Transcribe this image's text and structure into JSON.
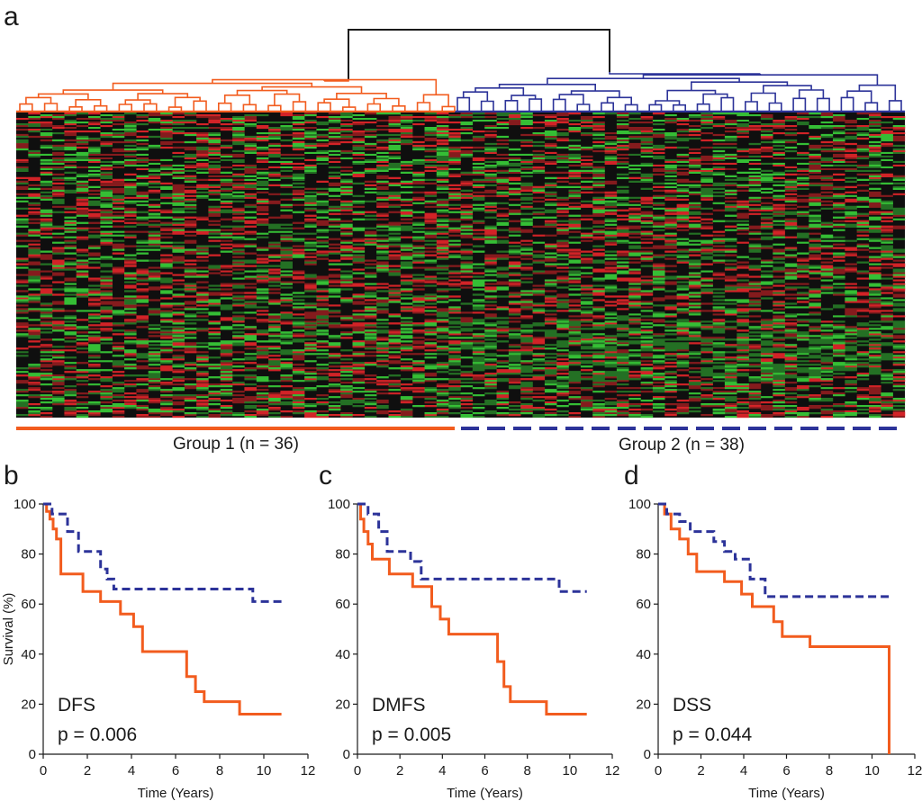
{
  "colors": {
    "group1": "#f25c1e",
    "group2": "#2c3399",
    "heat_up": "#e8262a",
    "heat_down": "#3ad13a",
    "heat_mid": "#0f0f0f",
    "root": "#1a1a1a"
  },
  "panel_a": {
    "letter": "a",
    "group1_label": "Group 1 (n = 36)",
    "group2_label": "Group 2 (n = 38)",
    "group1_n": 36,
    "group2_n": 38
  },
  "chart_data": [
    {
      "type": "line",
      "panel": "b",
      "title": "DFS",
      "pvalue": "p = 0.006",
      "xlabel": "Time (Years)",
      "ylabel": "Survival (%)",
      "xlim": [
        0,
        12
      ],
      "ylim": [
        0,
        100
      ],
      "xticks": [
        "0",
        "2",
        "4",
        "6",
        "8",
        "10",
        "12"
      ],
      "yticks": [
        "0",
        "20",
        "40",
        "60",
        "80",
        "100"
      ],
      "series": [
        {
          "name": "Group 1",
          "style": "solid",
          "color": "group1",
          "times": [
            0,
            0.15,
            0.3,
            0.45,
            0.6,
            0.8,
            1.8,
            2.6,
            3.5,
            4.1,
            4.5,
            6.5,
            6.9,
            7.3,
            8.9,
            10.8
          ],
          "survival": [
            100,
            97,
            94,
            90,
            86,
            72,
            65,
            61,
            56,
            51,
            41,
            31,
            25,
            21,
            16,
            16
          ]
        },
        {
          "name": "Group 2",
          "style": "dashed",
          "color": "group2",
          "times": [
            0,
            0.4,
            1.1,
            1.6,
            2.6,
            2.9,
            3.2,
            9.5,
            10.8
          ],
          "survival": [
            100,
            96,
            89,
            81,
            74,
            70,
            66,
            61,
            61
          ]
        }
      ]
    },
    {
      "type": "line",
      "panel": "c",
      "title": "DMFS",
      "pvalue": "p = 0.005",
      "xlabel": "Time (Years)",
      "ylabel": "",
      "xlim": [
        0,
        12
      ],
      "ylim": [
        0,
        100
      ],
      "xticks": [
        "0",
        "2",
        "4",
        "6",
        "8",
        "10",
        "12"
      ],
      "yticks": [
        "0",
        "20",
        "40",
        "60",
        "80",
        "100"
      ],
      "series": [
        {
          "name": "Group 1",
          "style": "solid",
          "color": "group1",
          "times": [
            0,
            0.15,
            0.3,
            0.5,
            0.7,
            1.5,
            2.6,
            3.5,
            3.9,
            4.3,
            6.6,
            6.9,
            7.2,
            8.9,
            10.8
          ],
          "survival": [
            100,
            94,
            89,
            84,
            78,
            72,
            67,
            59,
            54,
            48,
            37,
            27,
            21,
            16,
            16
          ]
        },
        {
          "name": "Group 2",
          "style": "dashed",
          "color": "group2",
          "times": [
            0,
            0.5,
            1.0,
            1.4,
            2.5,
            3.0,
            9.5,
            10.8
          ],
          "survival": [
            100,
            96,
            89,
            81,
            77,
            70,
            65,
            65
          ]
        }
      ]
    },
    {
      "type": "line",
      "panel": "d",
      "title": "DSS",
      "pvalue": "p = 0.044",
      "xlabel": "Time (Years)",
      "ylabel": "",
      "xlim": [
        0,
        12
      ],
      "ylim": [
        0,
        100
      ],
      "xticks": [
        "0",
        "2",
        "4",
        "6",
        "8",
        "10",
        "12"
      ],
      "yticks": [
        "0",
        "20",
        "40",
        "60",
        "80",
        "100"
      ],
      "series": [
        {
          "name": "Group 1",
          "style": "solid",
          "color": "group1",
          "times": [
            0,
            0.3,
            0.6,
            1.0,
            1.4,
            1.8,
            3.1,
            3.9,
            4.4,
            5.4,
            5.8,
            7.1,
            10.8,
            10.8
          ],
          "survival": [
            100,
            96,
            90,
            86,
            80,
            73,
            69,
            64,
            59,
            53,
            47,
            43,
            38,
            0
          ]
        },
        {
          "name": "Group 2",
          "style": "dashed",
          "color": "group2",
          "times": [
            0,
            0.4,
            1.0,
            1.5,
            2.6,
            3.1,
            3.6,
            4.3,
            5.0,
            10.8
          ],
          "survival": [
            100,
            96,
            93,
            89,
            85,
            81,
            78,
            70,
            63,
            63
          ]
        }
      ]
    }
  ]
}
